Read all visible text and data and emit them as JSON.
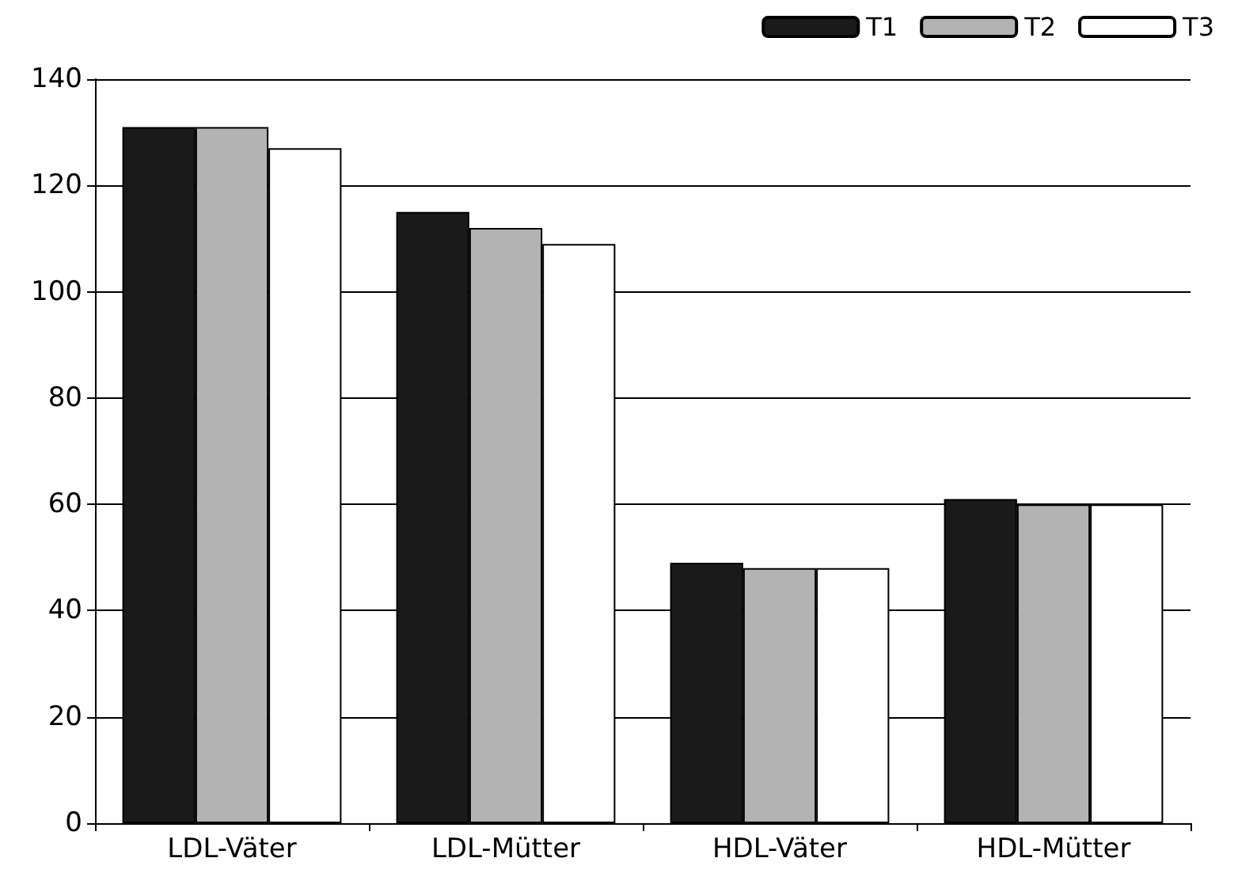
{
  "chart_data": {
    "type": "bar",
    "categories": [
      "LDL-Väter",
      "LDL-Mütter",
      "HDL-Väter",
      "HDL-Mütter"
    ],
    "series": [
      {
        "name": "T1",
        "color": "#1a1a1a",
        "values": [
          131,
          115,
          49,
          61
        ]
      },
      {
        "name": "T2",
        "color": "#b3b3b3",
        "values": [
          131,
          112,
          48,
          60
        ]
      },
      {
        "name": "T3",
        "color": "#ffffff",
        "values": [
          127,
          109,
          48,
          60
        ]
      }
    ],
    "ylim": [
      0,
      140
    ],
    "yticks": [
      0,
      20,
      40,
      60,
      80,
      100,
      120,
      140
    ],
    "grid": "y",
    "legend": "top right"
  }
}
